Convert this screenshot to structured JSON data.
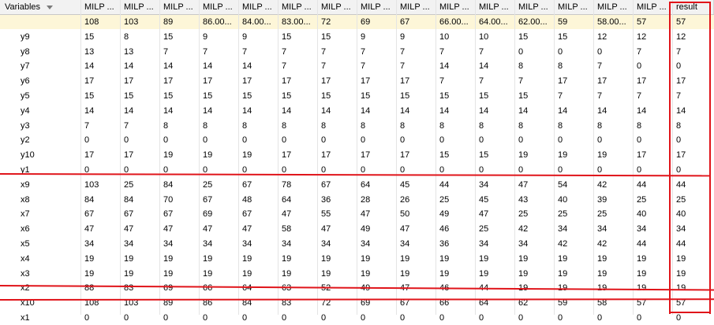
{
  "header": {
    "first": "Variables",
    "columns": [
      "MILP ...",
      "MILP ...",
      "MILP ...",
      "MILP ...",
      "MILP ...",
      "MILP ...",
      "MILP ...",
      "MILP ...",
      "MILP ...",
      "MILP ...",
      "MILP ...",
      "MILP ...",
      "MILP ...",
      "MILP ...",
      "MILP ...",
      "result"
    ]
  },
  "objective_row": [
    "108",
    "103",
    "89",
    "86.00...",
    "84.00...",
    "83.00...",
    "72",
    "69",
    "67",
    "66.00...",
    "64.00...",
    "62.00...",
    "59",
    "58.00...",
    "57",
    "57"
  ],
  "rows": [
    {
      "name": "y9",
      "values": [
        "15",
        "8",
        "15",
        "9",
        "9",
        "15",
        "15",
        "9",
        "9",
        "10",
        "10",
        "15",
        "15",
        "12",
        "12",
        "12"
      ]
    },
    {
      "name": "y8",
      "values": [
        "13",
        "13",
        "7",
        "7",
        "7",
        "7",
        "7",
        "7",
        "7",
        "7",
        "7",
        "0",
        "0",
        "0",
        "7",
        "7"
      ]
    },
    {
      "name": "y7",
      "values": [
        "14",
        "14",
        "14",
        "14",
        "14",
        "7",
        "7",
        "7",
        "7",
        "14",
        "14",
        "8",
        "8",
        "7",
        "0",
        "0"
      ]
    },
    {
      "name": "y6",
      "values": [
        "17",
        "17",
        "17",
        "17",
        "17",
        "17",
        "17",
        "17",
        "17",
        "7",
        "7",
        "7",
        "17",
        "17",
        "17",
        "17"
      ]
    },
    {
      "name": "y5",
      "values": [
        "15",
        "15",
        "15",
        "15",
        "15",
        "15",
        "15",
        "15",
        "15",
        "15",
        "15",
        "15",
        "7",
        "7",
        "7",
        "7"
      ]
    },
    {
      "name": "y4",
      "values": [
        "14",
        "14",
        "14",
        "14",
        "14",
        "14",
        "14",
        "14",
        "14",
        "14",
        "14",
        "14",
        "14",
        "14",
        "14",
        "14"
      ]
    },
    {
      "name": "y3",
      "values": [
        "7",
        "7",
        "8",
        "8",
        "8",
        "8",
        "8",
        "8",
        "8",
        "8",
        "8",
        "8",
        "8",
        "8",
        "8",
        "8"
      ]
    },
    {
      "name": "y2",
      "values": [
        "0",
        "0",
        "0",
        "0",
        "0",
        "0",
        "0",
        "0",
        "0",
        "0",
        "0",
        "0",
        "0",
        "0",
        "0",
        "0"
      ]
    },
    {
      "name": "y10",
      "values": [
        "17",
        "17",
        "19",
        "19",
        "19",
        "17",
        "17",
        "17",
        "17",
        "15",
        "15",
        "19",
        "19",
        "19",
        "17",
        "17"
      ]
    },
    {
      "name": "y1",
      "values": [
        "0",
        "0",
        "0",
        "0",
        "0",
        "0",
        "0",
        "0",
        "0",
        "0",
        "0",
        "0",
        "0",
        "0",
        "0",
        "0"
      ]
    },
    {
      "name": "x9",
      "values": [
        "103",
        "25",
        "84",
        "25",
        "67",
        "78",
        "67",
        "64",
        "45",
        "44",
        "34",
        "47",
        "54",
        "42",
        "44",
        "44"
      ]
    },
    {
      "name": "x8",
      "values": [
        "84",
        "84",
        "70",
        "67",
        "48",
        "64",
        "36",
        "28",
        "26",
        "25",
        "45",
        "43",
        "40",
        "39",
        "25",
        "25"
      ]
    },
    {
      "name": "x7",
      "values": [
        "67",
        "67",
        "67",
        "69",
        "67",
        "47",
        "55",
        "47",
        "50",
        "49",
        "47",
        "25",
        "25",
        "25",
        "40",
        "40"
      ]
    },
    {
      "name": "x6",
      "values": [
        "47",
        "47",
        "47",
        "47",
        "47",
        "58",
        "47",
        "49",
        "47",
        "46",
        "25",
        "42",
        "34",
        "34",
        "34",
        "34"
      ]
    },
    {
      "name": "x5",
      "values": [
        "34",
        "34",
        "34",
        "34",
        "34",
        "34",
        "34",
        "34",
        "34",
        "36",
        "34",
        "34",
        "42",
        "42",
        "44",
        "44"
      ]
    },
    {
      "name": "x4",
      "values": [
        "19",
        "19",
        "19",
        "19",
        "19",
        "19",
        "19",
        "19",
        "19",
        "19",
        "19",
        "19",
        "19",
        "19",
        "19",
        "19"
      ]
    },
    {
      "name": "x3",
      "values": [
        "19",
        "19",
        "19",
        "19",
        "19",
        "19",
        "19",
        "19",
        "19",
        "19",
        "19",
        "19",
        "19",
        "19",
        "19",
        "19"
      ]
    },
    {
      "name": "x2",
      "values": [
        "88",
        "83",
        "69",
        "66",
        "64",
        "63",
        "52",
        "49",
        "47",
        "46",
        "44",
        "19",
        "19",
        "19",
        "19",
        "19"
      ]
    },
    {
      "name": "x10",
      "values": [
        "108",
        "103",
        "89",
        "86",
        "84",
        "83",
        "72",
        "69",
        "67",
        "66",
        "64",
        "62",
        "59",
        "58",
        "57",
        "57"
      ]
    },
    {
      "name": "x1",
      "values": [
        "0",
        "0",
        "0",
        "0",
        "0",
        "0",
        "0",
        "0",
        "0",
        "0",
        "0",
        "0",
        "0",
        "0",
        "0",
        "0"
      ]
    }
  ],
  "annotation_color": "#e0141a"
}
